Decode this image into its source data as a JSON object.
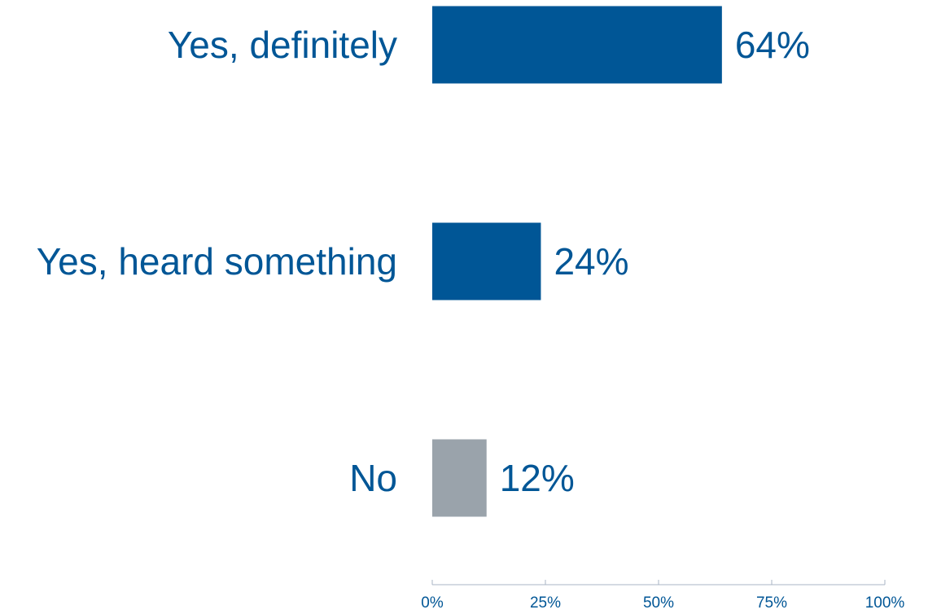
{
  "chart_data": {
    "type": "bar",
    "orientation": "horizontal",
    "categories": [
      "Yes, definitely",
      "Yes, heard something",
      "No"
    ],
    "values": [
      64,
      24,
      12
    ],
    "value_labels": [
      "64%",
      "24%",
      "12%"
    ],
    "bar_colors": [
      "#005696",
      "#005696",
      "#9aa3ab"
    ],
    "text_color": "#005696",
    "axis_color": "#a9b4c4",
    "xlim": [
      0,
      100
    ],
    "x_ticks": [
      0,
      25,
      50,
      75,
      100
    ],
    "x_tick_labels": [
      "0%",
      "25%",
      "50%",
      "75%",
      "100%"
    ],
    "grid": false,
    "legend": "none"
  }
}
